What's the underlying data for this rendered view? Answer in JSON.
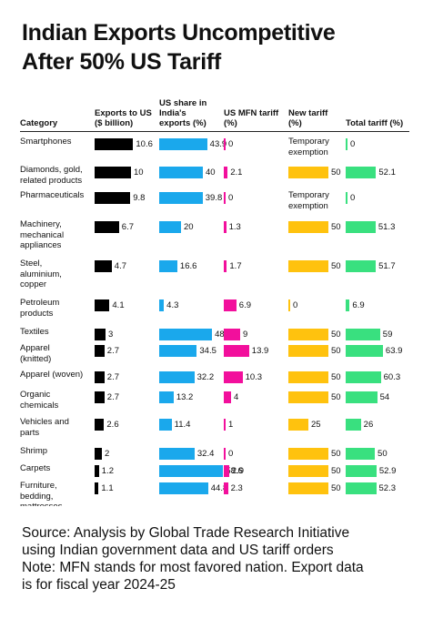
{
  "title_lines": [
    "Indian Exports Uncompetitive",
    "After 50% US Tariff"
  ],
  "headers": {
    "category": "Category",
    "exports": [
      "Exports to US",
      "($ billion)"
    ],
    "share": [
      "US share in",
      "India's",
      "exports (%)"
    ],
    "mfn": [
      "US MFN tariff",
      "(%)"
    ],
    "new_tariff": [
      "New tariff",
      "(%)"
    ],
    "total": [
      "Total tariff (%)"
    ]
  },
  "colors": {
    "exports": "#000000",
    "share": "#1aa8ec",
    "mfn": "#f20f9c",
    "new_tariff": "#ffc20e",
    "total": "#39e07f"
  },
  "chart_data": {
    "type": "table",
    "title": "Indian Exports Uncompetitive After 50% US Tariff",
    "columns": [
      "Category",
      "Exports to US ($ billion)",
      "US share in India's exports (%)",
      "US MFN tariff (%)",
      "New tariff (%)",
      "Total tariff (%)"
    ],
    "rows": [
      {
        "category": [
          "Smartphones"
        ],
        "exports": 10.6,
        "share": 43.9,
        "mfn": 0,
        "new_tariff": null,
        "new_tariff_text": [
          "Temporary",
          "exemption"
        ],
        "total": 0
      },
      {
        "category": [
          "Diamonds, gold,",
          "related products"
        ],
        "exports": 10,
        "share": 40,
        "mfn": 2.1,
        "new_tariff": 50,
        "total": 52.1
      },
      {
        "category": [
          "Pharmaceuticals"
        ],
        "exports": 9.8,
        "share": 39.8,
        "mfn": 0,
        "new_tariff": null,
        "new_tariff_text": [
          "Temporary",
          "exemption"
        ],
        "total": 0
      },
      {
        "category": [
          "Machinery,",
          "mechanical",
          "appliances"
        ],
        "exports": 6.7,
        "share": 20,
        "mfn": 1.3,
        "new_tariff": 50,
        "total": 51.3
      },
      {
        "category": [
          "Steel,",
          "aluminium,",
          "copper"
        ],
        "exports": 4.7,
        "share": 16.6,
        "mfn": 1.7,
        "new_tariff": 50,
        "total": 51.7
      },
      {
        "category": [
          "Petroleum",
          "products"
        ],
        "exports": 4.1,
        "share": 4.3,
        "mfn": 6.9,
        "new_tariff": 0,
        "total": 6.9
      },
      {
        "category": [
          "Textiles"
        ],
        "exports": 3,
        "share": 48.4,
        "mfn": 9,
        "new_tariff": 50,
        "total": 59
      },
      {
        "category": [
          "Apparel",
          "(knitted)"
        ],
        "exports": 2.7,
        "share": 34.5,
        "mfn": 13.9,
        "new_tariff": 50,
        "total": 63.9
      },
      {
        "category": [
          "Apparel (woven)"
        ],
        "exports": 2.7,
        "share": 32.2,
        "mfn": 10.3,
        "new_tariff": 50,
        "total": 60.3
      },
      {
        "category": [
          "Organic",
          "chemicals"
        ],
        "exports": 2.7,
        "share": 13.2,
        "mfn": 4,
        "new_tariff": 50,
        "total": 54
      },
      {
        "category": [
          "Vehicles and",
          "parts"
        ],
        "exports": 2.6,
        "share": 11.4,
        "mfn": 1,
        "new_tariff": 25,
        "total": 26
      },
      {
        "category": [
          "Shrimp"
        ],
        "exports": 2,
        "share": 32.4,
        "mfn": 0,
        "new_tariff": 50,
        "total": 50
      },
      {
        "category": [
          "Carpets"
        ],
        "exports": 1.2,
        "share": 58.6,
        "mfn": 2.9,
        "new_tariff": 50,
        "total": 52.9
      },
      {
        "category": [
          "Furniture,",
          "bedding,",
          "mattresses"
        ],
        "exports": 1.1,
        "share": 44.8,
        "mfn": 2.3,
        "new_tariff": 50,
        "total": 52.3
      }
    ]
  },
  "footer_lines": [
    "Source: Analysis by Global Trade Research Initiative",
    "using Indian government data and US tariff orders",
    "Note: MFN stands for most favored nation. Export data",
    "is for fiscal year 2024-25"
  ]
}
